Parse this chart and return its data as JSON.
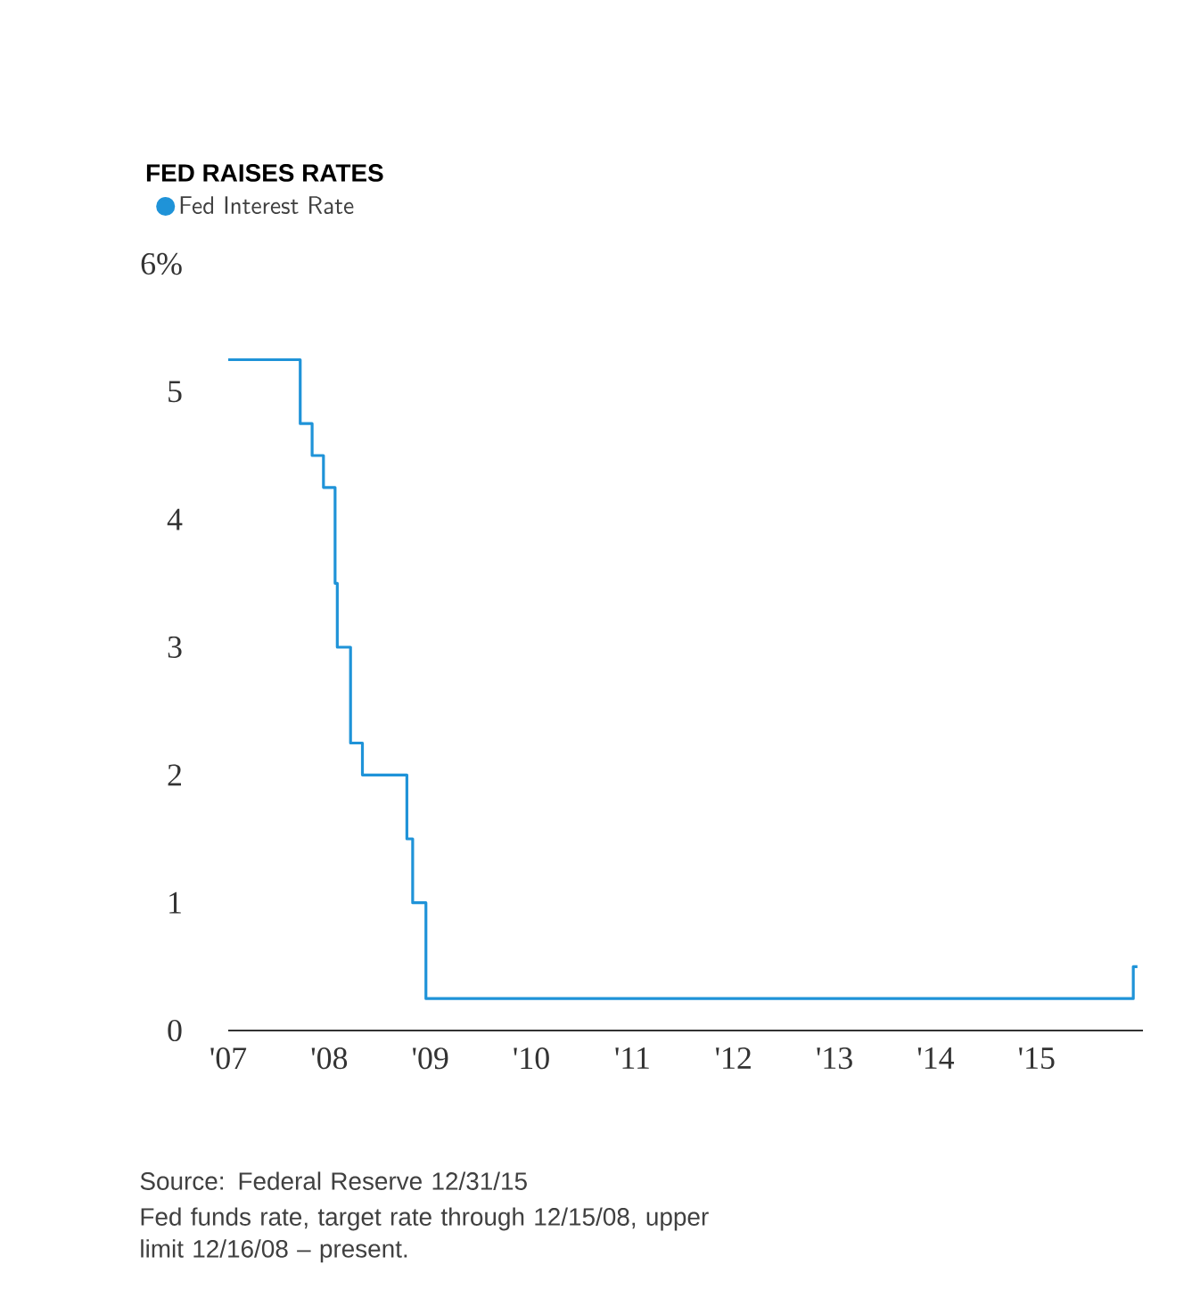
{
  "chart_data": {
    "type": "step",
    "title": "FED RAISES RATES",
    "x": [
      "2007-01-01",
      "2007-09-18",
      "2007-10-31",
      "2007-12-11",
      "2008-01-22",
      "2008-01-30",
      "2008-03-18",
      "2008-04-30",
      "2008-10-08",
      "2008-10-29",
      "2008-12-16",
      "2015-12-16",
      "2015-12-31"
    ],
    "series": [
      {
        "name": "Fed Interest Rate",
        "color": "#1f93d8",
        "values": [
          5.25,
          4.75,
          4.5,
          4.25,
          3.5,
          3.0,
          2.25,
          2.0,
          1.5,
          1.0,
          0.25,
          0.5,
          0.5
        ]
      }
    ],
    "xlim": [
      "2007-01-01",
      "2016-01-20"
    ],
    "xticks": [
      {
        "value": "2007-01-01",
        "label": "'07"
      },
      {
        "value": "2008-01-01",
        "label": "'08"
      },
      {
        "value": "2009-01-01",
        "label": "'09"
      },
      {
        "value": "2010-01-01",
        "label": "'10"
      },
      {
        "value": "2011-01-01",
        "label": "'11"
      },
      {
        "value": "2012-01-01",
        "label": "'12"
      },
      {
        "value": "2013-01-01",
        "label": "'13"
      },
      {
        "value": "2014-01-01",
        "label": "'14"
      },
      {
        "value": "2015-01-01",
        "label": "'15"
      }
    ],
    "ylim": [
      0,
      6
    ],
    "yticks": [
      0,
      1,
      2,
      3,
      4,
      5,
      {
        "value": 6,
        "label": "6%"
      }
    ],
    "legend": "top left",
    "annotations": [
      "Source: Federal Reserve 12/31/15",
      "Fed funds rate, target rate through 12/15/08, upper limit 12/16/08 – present."
    ]
  }
}
